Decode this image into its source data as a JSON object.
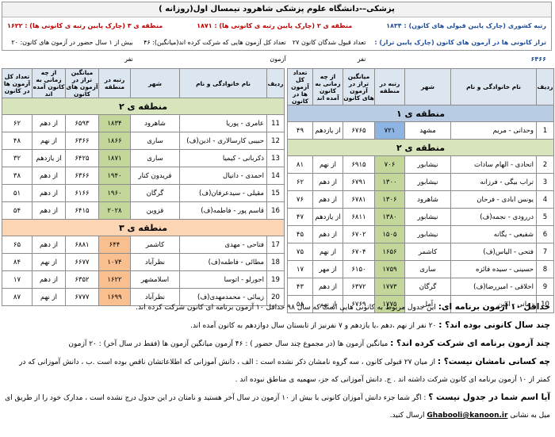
{
  "header": {
    "title": "پزشکی–-دانشگاه علوم پزشکی شاهرود نیمسال اول(روزانه )",
    "stats": [
      [
        "رتبه کشوری (چارک پایین قبولی های کانون) : ۱۸۳۴",
        "منطقه ی ۲ (چارک پایین رتبه ی کانونی ها) : ۱۸۷۱",
        "منطقه ی ۳ (چارک پایین رتبه ی کانونی ها) : ۱۶۲۲"
      ],
      [
        "تراز کانونی ها در آزمون های کانون (چارک پایین تراز) : ۶۴۶۶",
        "تعداد قبول شدگان کانون ۲۷ نفر",
        "تعداد کل آزمون هایی که شرکت کرده اند(میانگین): ۴۶ آزمون",
        "بیش از ۱ سال حضور در آزمون های کانون: ۲۰ نفر"
      ]
    ]
  },
  "tables": [
    {
      "columns": [
        "ردیف",
        "نام خانوادگی و نام",
        "شهر",
        "رتبه در منطقه",
        "میانگین تراز در آزمون های کانون",
        "از چه زمانی به کانون آمده اند",
        "تعداد کل آزمون ها در کانون"
      ],
      "sections": [
        {
          "title": "منطقه ی ۱",
          "rows": [
            [
              "1",
              "وحدانی - مریم",
              "مشهد",
              "۷۲۱",
              "۶۷۶۵",
              "از یازدهم",
              "۴۹"
            ]
          ]
        },
        {
          "title": "منطقه ی ۲",
          "rows": [
            [
              "2",
              "اتحادی - الهام سادات",
              "نیشابور",
              "۷۰۶",
              "۶۹۱۵",
              "از نهم",
              "۸۱"
            ],
            [
              "3",
              "تراب بیگی - فرزانه",
              "نیشابور",
              "۱۳۰۰",
              "۶۷۹۱",
              "از دهم",
              "۶۲"
            ],
            [
              "4",
              "یونس ابادی - فرحان",
              "شاهرود",
              "۱۳۰۶",
              "۶۷۸۱",
              "از دهم",
              "۷۶"
            ],
            [
              "5",
              "دررودی - نجمه(ف)",
              "نیشابور",
              "۱۳۸۰",
              "۶۸۱۱",
              "از یازدهم",
              "۴۷"
            ],
            [
              "6",
              "شفیعی - یگانه",
              "نیشابور",
              "۱۵۰۵",
              "۶۷۰۲",
              "از دهم",
              "۴۵"
            ],
            [
              "7",
              "فتحی - الیاس(ف)",
              "کاشمر",
              "۱۶۵۶",
              "۶۷۰۴",
              "از نهم",
              "۷۵"
            ],
            [
              "8",
              "حسینی - سیده فائزه",
              "ساری",
              "۱۷۵۹",
              "۶۱۵۰",
              "از مهر",
              "۱۷"
            ],
            [
              "9",
              "اخلاقی - امیررضا(ف)",
              "گرگان",
              "۱۷۷۳",
              "۶۳۷۲",
              "از دهم",
              "۴۳"
            ],
            [
              "10",
              "زمانی - امین",
              "آمل",
              "۱۷۷۵",
              "۶۷۶۹",
              "از نهم",
              "۵۸"
            ]
          ]
        }
      ]
    },
    {
      "columns": [
        "ردیف",
        "نام خانوادگی و نام",
        "شهر",
        "رتبه در منطقه",
        "میانگین تراز در آزمون های کانون",
        "از چه زمانی به کانون آمده اند",
        "تعداد کل آزمون ها در کانون"
      ],
      "sections": [
        {
          "title": "منطقه ی ۲",
          "rows": [
            [
              "11",
              "عامری - پوریا",
              "شاهرود",
              "۱۸۳۴",
              "۶۵۹۳",
              "از دهم",
              "۶۲"
            ],
            [
              "12",
              "حبیبی کارسالاری - اذین(ف)",
              "ساری",
              "۱۸۶۶",
              "۶۳۶۶",
              "از نهم",
              "۴۸"
            ],
            [
              "13",
              "ذکربانی - کیمیا",
              "ساری",
              "۱۸۷۱",
              "۶۴۲۵",
              "از یازدهم",
              "۳۲"
            ],
            [
              "14",
              "احمدی - دانیال",
              "فریدون کنار",
              "۱۹۴۰",
              "۶۳۶۶",
              "از دهم",
              "۳۸"
            ],
            [
              "15",
              "مقیلی - سیدعرفان(ف)",
              "گرگان",
              "۱۹۶۰",
              "۶۱۶۶",
              "از دهم",
              "۵۱"
            ],
            [
              "16",
              "قاسم پور - فاطمه(ف)",
              "قزوین",
              "۲۰۲۸",
              "۶۴۱۵",
              "از دهم",
              "۵۴"
            ]
          ]
        },
        {
          "title": "منطقه ی ۳",
          "rows": [
            [
              "17",
              "فتاحی - مهدی",
              "کاشمر",
              "۶۴۴",
              "۶۸۸۱",
              "از دهم",
              "۶۵"
            ],
            [
              "18",
              "مطائی - فاطمه(ف)",
              "نظرآباد",
              "۱۰۷۴",
              "۶۶۷۷",
              "از نهم",
              "۸۴"
            ],
            [
              "19",
              "اجورلو - اتوسا",
              "اسلامشهر",
              "۱۶۲۲",
              "۶۳۵۲",
              "از دهم",
              "۱۷"
            ],
            [
              "20",
              "زیبائی - محمدمهدی(ف)",
              "نظرآباد",
              "۱۶۹۹",
              "۶۷۷۷",
              "از نهم",
              "۸۷"
            ]
          ]
        }
      ]
    }
  ],
  "notes": [
    {
      "label": "حداقل ۱۰ آزمون برنامه ای:",
      "text": "این جدول مربوط به کانونی هایی است که سال ۹۸ حداقل ۱۰ آزمون برنامه ای کانون شرکت کرده اند."
    },
    {
      "label": "چند سال کانونی بوده اند؟ :",
      "text": "۲۰ نفر از نهم ،دهم ،یا یازدهم و ۷ نفرنیز از تابستان سال دوازدهم به کانون آمده اند."
    },
    {
      "label": "چند آزمون برنامه ای شرکت کرده اند؟ :",
      "text": "میانگین آزمون ها (در مجموع چند سال حضور ) : ۴۶ آزمون     میانگین آزمون ها (فقط در سال آخر) : ۲۰ آزمون"
    },
    {
      "label": "چه کسانی نامشان نیست؟ :",
      "text": "از میان ۲۷ قبولی کانون ، سه گروه نامشان ذکر نشده است : الف ، دانش آموزانی که اطلاعاتشان ناقص بوده است .ب ، دانش آموزانی که در کمتر از ۱۰ آزمون برنامه ای کانون شرکت داشته اند . ج. دانش آموزانی که جز، سهمیه ی مناطق نبوده اند ."
    },
    {
      "label": "آیا اسم شما در جدول نیست ؟",
      "text": ": اگر شما جزء دانش آموزان کانونی با بیش از ۱۰ آزمون در سال آخر هستید و نامتان در این جدول درج نشده است ، مدارک خود را از طریق ای میل به نشانی",
      "email": "Ghabooli@kanoon.ir",
      "tail": "ارسال کنید."
    }
  ]
}
